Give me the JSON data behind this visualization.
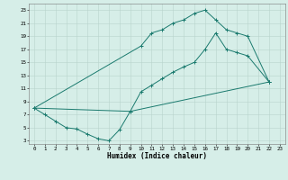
{
  "line1_x": [
    0,
    1,
    2,
    3,
    4,
    5,
    6,
    7,
    8,
    9,
    22
  ],
  "line1_y": [
    8,
    7,
    6,
    5,
    4.8,
    4,
    3.3,
    3,
    4.7,
    7.5,
    12
  ],
  "line2_x": [
    0,
    10,
    11,
    12,
    13,
    14,
    15,
    16,
    17,
    18,
    19,
    20,
    22
  ],
  "line2_y": [
    8,
    17.5,
    19.5,
    20,
    21,
    21.5,
    22.5,
    23,
    21.5,
    20,
    19.5,
    19,
    12
  ],
  "line3_x": [
    0,
    9,
    10,
    11,
    12,
    13,
    14,
    15,
    16,
    17,
    18,
    19,
    20,
    22
  ],
  "line3_y": [
    8,
    7.5,
    10.5,
    11.5,
    12.5,
    13.5,
    14.3,
    15,
    17,
    19.5,
    17,
    16.5,
    16,
    12
  ],
  "bg_color": "#d6eee8",
  "grid_color": "#b8d4cc",
  "line_color": "#1a7a6e",
  "xlabel": "Humidex (Indice chaleur)",
  "xlim": [
    -0.5,
    23.5
  ],
  "ylim": [
    2.5,
    24
  ],
  "xticks": [
    0,
    1,
    2,
    3,
    4,
    5,
    6,
    7,
    8,
    9,
    10,
    11,
    12,
    13,
    14,
    15,
    16,
    17,
    18,
    19,
    20,
    21,
    22,
    23
  ],
  "yticks": [
    3,
    5,
    7,
    9,
    11,
    13,
    15,
    17,
    19,
    21,
    23
  ],
  "xlabel_fontsize": 5.5,
  "tick_fontsize": 4.2,
  "line_width": 0.7,
  "marker_size": 2.5
}
